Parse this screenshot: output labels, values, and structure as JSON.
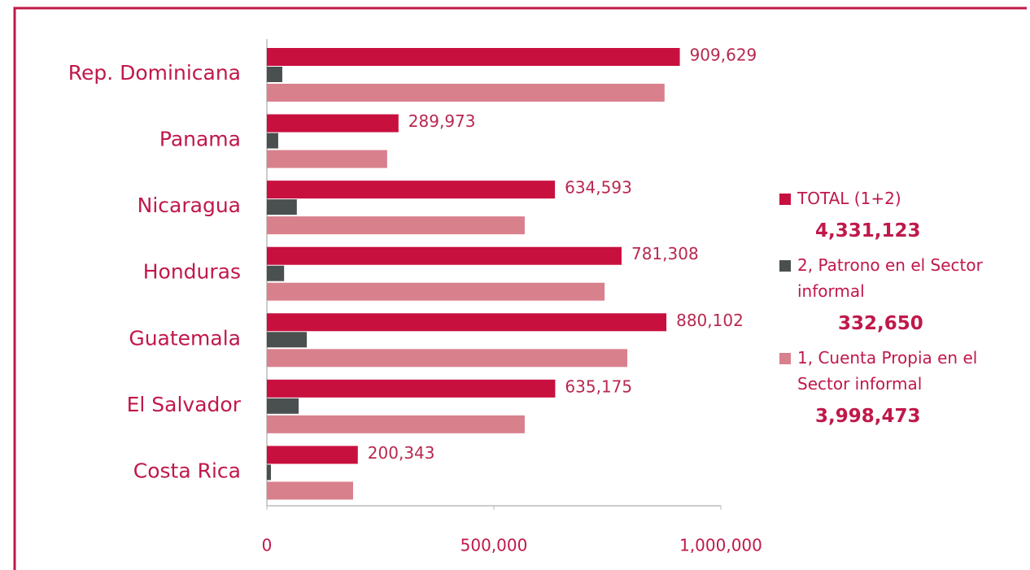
{
  "chart_data": {
    "type": "hbar",
    "categories": [
      "Rep. Dominicana",
      "Panama",
      "Nicaragua",
      "Honduras",
      "Guatemala",
      "El Salvador",
      "Costa Rica"
    ],
    "series": [
      {
        "name": "TOTAL (1+2)",
        "color": "#c8103f",
        "total_label": "4,331,123",
        "values": [
          909629,
          289973,
          634593,
          781308,
          880102,
          635175,
          200343
        ],
        "value_labels": [
          "909,629",
          "289,973",
          "634,593",
          "781,308",
          "880,102",
          "635,175",
          "200,343"
        ]
      },
      {
        "name": "2, Patrono en el Sector informal",
        "color": "#4a4f4f",
        "total_label": "332,650",
        "values": [
          34000,
          25000,
          66000,
          38000,
          88000,
          70000,
          9000
        ]
      },
      {
        "name": "1, Cuenta Propia en el Sector informal",
        "color": "#d9808d",
        "total_label": "3,998,473",
        "values": [
          876000,
          265000,
          568000,
          744000,
          794000,
          568000,
          190000
        ]
      }
    ],
    "xlim": [
      0,
      1000000
    ],
    "xticks": [
      0,
      {
        "value": 500000,
        "label": "500,000"
      },
      {
        "value": 1000000,
        "label": "1,000,000"
      }
    ]
  }
}
